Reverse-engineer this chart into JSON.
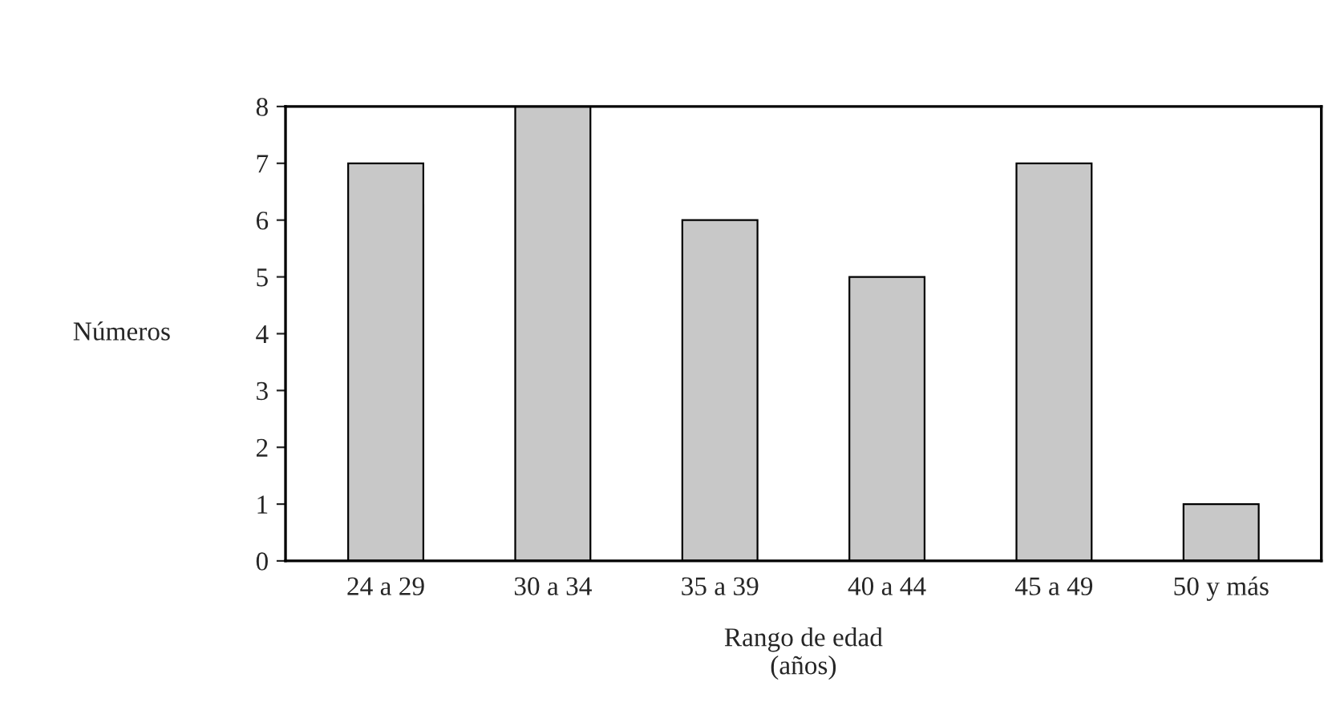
{
  "chart_data": {
    "type": "bar",
    "xlabel": "Rango de edad\n(años)",
    "ylabel": "Números",
    "categories": [
      "24 a 29",
      "30 a 34",
      "35 a 39",
      "40 a 44",
      "45 a 49",
      "50 y más"
    ],
    "values": [
      7,
      8,
      6,
      5,
      7,
      1
    ],
    "color": "#c8c8c8",
    "ylim": [
      0,
      8
    ],
    "yticks": [
      0,
      1,
      2,
      3,
      4,
      5,
      6,
      7,
      8
    ],
    "grid": false,
    "legend": false
  }
}
